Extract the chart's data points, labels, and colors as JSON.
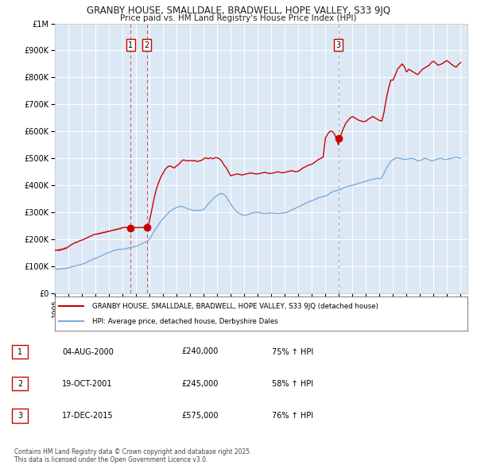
{
  "title_line1": "GRANBY HOUSE, SMALLDALE, BRADWELL, HOPE VALLEY, S33 9JQ",
  "title_line2": "Price paid vs. HM Land Registry's House Price Index (HPI)",
  "ylim": [
    0,
    1000000
  ],
  "xlim_start": 1995.0,
  "xlim_end": 2025.5,
  "background_color": "#dce9f5",
  "plot_bg_color": "#dce9f5",
  "grid_color": "#ffffff",
  "legend_label_red": "GRANBY HOUSE, SMALLDALE, BRADWELL, HOPE VALLEY, S33 9JQ (detached house)",
  "legend_label_blue": "HPI: Average price, detached house, Derbyshire Dales",
  "red_color": "#cc0000",
  "blue_color": "#7aaddb",
  "vline_color_red": "#dd4444",
  "vline_color_gray": "#aaaaaa",
  "transactions": [
    {
      "num": 1,
      "date_label": "04-AUG-2000",
      "price_label": "£240,000",
      "hpi_label": "75% ↑ HPI",
      "year": 2000.59,
      "vline_color": "#dd4444",
      "price": 240000
    },
    {
      "num": 2,
      "date_label": "19-OCT-2001",
      "price_label": "£245,000",
      "hpi_label": "58% ↑ HPI",
      "year": 2001.8,
      "vline_color": "#dd4444",
      "price": 245000
    },
    {
      "num": 3,
      "date_label": "17-DEC-2015",
      "price_label": "£575,000",
      "hpi_label": "76% ↑ HPI",
      "year": 2015.96,
      "vline_color": "#aaaaaa",
      "price": 575000
    }
  ],
  "footer_text": "Contains HM Land Registry data © Crown copyright and database right 2025.\nThis data is licensed under the Open Government Licence v3.0.",
  "red_line_data": {
    "x": [
      1995.0,
      1995.08,
      1995.17,
      1995.25,
      1995.33,
      1995.42,
      1995.5,
      1995.58,
      1995.67,
      1995.75,
      1995.83,
      1995.92,
      1996.0,
      1996.08,
      1996.17,
      1996.25,
      1996.33,
      1996.42,
      1996.5,
      1996.58,
      1996.67,
      1996.75,
      1996.83,
      1996.92,
      1997.0,
      1997.08,
      1997.17,
      1997.25,
      1997.33,
      1997.42,
      1997.5,
      1997.58,
      1997.67,
      1997.75,
      1997.83,
      1997.92,
      1998.0,
      1998.08,
      1998.17,
      1998.25,
      1998.33,
      1998.42,
      1998.5,
      1998.58,
      1998.67,
      1998.75,
      1998.83,
      1998.92,
      1999.0,
      1999.08,
      1999.17,
      1999.25,
      1999.33,
      1999.42,
      1999.5,
      1999.58,
      1999.67,
      1999.75,
      1999.83,
      1999.92,
      2000.0,
      2000.08,
      2000.17,
      2000.25,
      2000.33,
      2000.42,
      2000.59,
      2000.67,
      2000.75,
      2000.83,
      2000.92,
      2001.0,
      2001.08,
      2001.17,
      2001.25,
      2001.33,
      2001.42,
      2001.5,
      2001.58,
      2001.67,
      2001.75,
      2001.8,
      2001.92,
      2002.0,
      2002.17,
      2002.33,
      2002.5,
      2002.67,
      2002.83,
      2003.0,
      2003.17,
      2003.33,
      2003.5,
      2003.67,
      2003.83,
      2004.0,
      2004.17,
      2004.33,
      2004.5,
      2004.67,
      2004.83,
      2005.0,
      2005.17,
      2005.33,
      2005.5,
      2005.67,
      2005.83,
      2006.0,
      2006.17,
      2006.33,
      2006.5,
      2006.67,
      2006.83,
      2007.0,
      2007.17,
      2007.33,
      2007.5,
      2007.67,
      2007.83,
      2008.0,
      2008.17,
      2008.33,
      2008.5,
      2008.67,
      2008.83,
      2009.0,
      2009.17,
      2009.33,
      2009.5,
      2009.67,
      2009.83,
      2010.0,
      2010.17,
      2010.33,
      2010.5,
      2010.67,
      2010.83,
      2011.0,
      2011.17,
      2011.33,
      2011.5,
      2011.67,
      2011.83,
      2012.0,
      2012.17,
      2012.33,
      2012.5,
      2012.67,
      2012.83,
      2013.0,
      2013.17,
      2013.33,
      2013.5,
      2013.67,
      2013.83,
      2014.0,
      2014.17,
      2014.33,
      2014.5,
      2014.67,
      2014.83,
      2015.0,
      2015.17,
      2015.33,
      2015.5,
      2015.67,
      2015.83,
      2015.96,
      2016.0,
      2016.17,
      2016.33,
      2016.5,
      2016.67,
      2016.83,
      2017.0,
      2017.17,
      2017.33,
      2017.5,
      2017.67,
      2017.83,
      2018.0,
      2018.17,
      2018.33,
      2018.5,
      2018.67,
      2018.83,
      2019.0,
      2019.17,
      2019.33,
      2019.5,
      2019.67,
      2019.83,
      2020.0,
      2020.17,
      2020.33,
      2020.5,
      2020.67,
      2020.83,
      2021.0,
      2021.17,
      2021.33,
      2021.5,
      2021.67,
      2021.83,
      2022.0,
      2022.17,
      2022.33,
      2022.5,
      2022.67,
      2022.83,
      2023.0,
      2023.17,
      2023.33,
      2023.5,
      2023.67,
      2023.83,
      2024.0,
      2024.17,
      2024.33,
      2024.5,
      2024.67,
      2024.83,
      2025.0
    ],
    "y": [
      158000,
      160000,
      158000,
      162000,
      157000,
      163000,
      160000,
      165000,
      162000,
      168000,
      165000,
      170000,
      172000,
      175000,
      178000,
      180000,
      183000,
      185000,
      188000,
      187000,
      190000,
      192000,
      194000,
      196000,
      196000,
      198000,
      200000,
      202000,
      204000,
      206000,
      208000,
      210000,
      212000,
      214000,
      216000,
      218000,
      218000,
      220000,
      218000,
      222000,
      220000,
      224000,
      222000,
      226000,
      224000,
      228000,
      226000,
      230000,
      228000,
      230000,
      232000,
      234000,
      232000,
      236000,
      234000,
      238000,
      236000,
      240000,
      238000,
      242000,
      242000,
      244000,
      243000,
      244000,
      243000,
      244000,
      240000,
      244000,
      242000,
      244000,
      243000,
      244000,
      242000,
      243000,
      244000,
      243000,
      244000,
      243000,
      244000,
      242000,
      244000,
      245000,
      244000,
      270000,
      310000,
      350000,
      385000,
      410000,
      430000,
      445000,
      460000,
      468000,
      472000,
      468000,
      464000,
      472000,
      478000,
      488000,
      494000,
      492000,
      490000,
      492000,
      490000,
      492000,
      488000,
      490000,
      492000,
      498000,
      502000,
      498000,
      502000,
      498000,
      502000,
      502000,
      498000,
      490000,
      475000,
      465000,
      450000,
      435000,
      438000,
      440000,
      442000,
      440000,
      438000,
      440000,
      442000,
      444000,
      446000,
      444000,
      442000,
      442000,
      444000,
      446000,
      448000,
      446000,
      444000,
      444000,
      446000,
      448000,
      450000,
      448000,
      446000,
      448000,
      450000,
      452000,
      454000,
      452000,
      450000,
      452000,
      458000,
      464000,
      468000,
      472000,
      476000,
      478000,
      484000,
      490000,
      496000,
      500000,
      504000,
      575000,
      590000,
      600000,
      600000,
      590000,
      570000,
      550000,
      560000,
      590000,
      610000,
      630000,
      640000,
      650000,
      655000,
      650000,
      645000,
      640000,
      638000,
      636000,
      638000,
      645000,
      650000,
      655000,
      650000,
      645000,
      640000,
      638000,
      670000,
      720000,
      760000,
      790000,
      790000,
      810000,
      830000,
      840000,
      850000,
      840000,
      820000,
      830000,
      825000,
      820000,
      815000,
      810000,
      820000,
      830000,
      835000,
      840000,
      845000,
      855000,
      860000,
      852000,
      845000,
      848000,
      852000,
      858000,
      862000,
      855000,
      848000,
      842000,
      838000,
      848000,
      855000
    ]
  },
  "blue_line_data": {
    "x": [
      1995.0,
      1995.08,
      1995.17,
      1995.25,
      1995.33,
      1995.42,
      1995.5,
      1995.58,
      1995.67,
      1995.75,
      1995.83,
      1995.92,
      1996.0,
      1996.08,
      1996.17,
      1996.25,
      1996.33,
      1996.42,
      1996.5,
      1996.58,
      1996.67,
      1996.75,
      1996.83,
      1996.92,
      1997.0,
      1997.08,
      1997.17,
      1997.25,
      1997.33,
      1997.42,
      1997.5,
      1997.58,
      1997.67,
      1997.75,
      1997.83,
      1997.92,
      1998.0,
      1998.08,
      1998.17,
      1998.25,
      1998.33,
      1998.42,
      1998.5,
      1998.58,
      1998.67,
      1998.75,
      1998.83,
      1998.92,
      1999.0,
      1999.08,
      1999.17,
      1999.25,
      1999.33,
      1999.42,
      1999.5,
      1999.58,
      1999.67,
      1999.75,
      1999.83,
      1999.92,
      2000.0,
      2000.08,
      2000.17,
      2000.25,
      2000.33,
      2000.42,
      2000.5,
      2000.58,
      2000.67,
      2000.75,
      2000.83,
      2000.92,
      2001.0,
      2001.08,
      2001.17,
      2001.25,
      2001.33,
      2001.42,
      2001.5,
      2001.58,
      2001.67,
      2001.75,
      2001.83,
      2001.92,
      2002.0,
      2002.17,
      2002.33,
      2002.5,
      2002.67,
      2002.83,
      2003.0,
      2003.17,
      2003.33,
      2003.5,
      2003.67,
      2003.83,
      2004.0,
      2004.17,
      2004.33,
      2004.5,
      2004.67,
      2004.83,
      2005.0,
      2005.17,
      2005.33,
      2005.5,
      2005.67,
      2005.83,
      2006.0,
      2006.17,
      2006.33,
      2006.5,
      2006.67,
      2006.83,
      2007.0,
      2007.17,
      2007.33,
      2007.5,
      2007.67,
      2007.83,
      2008.0,
      2008.17,
      2008.33,
      2008.5,
      2008.67,
      2008.83,
      2009.0,
      2009.17,
      2009.33,
      2009.5,
      2009.67,
      2009.83,
      2010.0,
      2010.17,
      2010.33,
      2010.5,
      2010.67,
      2010.83,
      2011.0,
      2011.17,
      2011.33,
      2011.5,
      2011.67,
      2011.83,
      2012.0,
      2012.17,
      2012.33,
      2012.5,
      2012.67,
      2012.83,
      2013.0,
      2013.17,
      2013.33,
      2013.5,
      2013.67,
      2013.83,
      2014.0,
      2014.17,
      2014.33,
      2014.5,
      2014.67,
      2014.83,
      2015.0,
      2015.17,
      2015.33,
      2015.5,
      2015.67,
      2015.83,
      2015.96,
      2016.0,
      2016.17,
      2016.33,
      2016.5,
      2016.67,
      2016.83,
      2017.0,
      2017.17,
      2017.33,
      2017.5,
      2017.67,
      2017.83,
      2018.0,
      2018.17,
      2018.33,
      2018.5,
      2018.67,
      2018.83,
      2019.0,
      2019.17,
      2019.33,
      2019.5,
      2019.67,
      2019.83,
      2020.0,
      2020.17,
      2020.33,
      2020.5,
      2020.67,
      2020.83,
      2021.0,
      2021.17,
      2021.33,
      2021.5,
      2021.67,
      2021.83,
      2022.0,
      2022.17,
      2022.33,
      2022.5,
      2022.67,
      2022.83,
      2023.0,
      2023.17,
      2023.33,
      2023.5,
      2023.67,
      2023.83,
      2024.0,
      2024.17,
      2024.33,
      2024.5,
      2024.67,
      2024.83,
      2025.0
    ],
    "y": [
      90000,
      89000,
      90000,
      88000,
      90000,
      89000,
      91000,
      90000,
      92000,
      91000,
      93000,
      92000,
      93000,
      95000,
      96000,
      97000,
      98000,
      100000,
      101000,
      102000,
      103000,
      104000,
      105000,
      106000,
      107000,
      109000,
      110000,
      112000,
      114000,
      116000,
      118000,
      120000,
      122000,
      124000,
      126000,
      128000,
      128000,
      130000,
      132000,
      134000,
      136000,
      138000,
      140000,
      142000,
      144000,
      146000,
      148000,
      150000,
      150000,
      152000,
      154000,
      156000,
      158000,
      158000,
      160000,
      160000,
      162000,
      162000,
      164000,
      162000,
      162000,
      163000,
      164000,
      165000,
      166000,
      167000,
      168000,
      169000,
      170000,
      171000,
      172000,
      173000,
      174000,
      175000,
      177000,
      179000,
      181000,
      183000,
      185000,
      187000,
      189000,
      191000,
      193000,
      195000,
      200000,
      215000,
      228000,
      242000,
      254000,
      266000,
      276000,
      285000,
      294000,
      303000,
      308000,
      313000,
      318000,
      320000,
      322000,
      320000,
      316000,
      312000,
      310000,
      308000,
      306000,
      308000,
      306000,
      308000,
      310000,
      320000,
      330000,
      340000,
      348000,
      356000,
      362000,
      368000,
      370000,
      365000,
      358000,
      345000,
      330000,
      318000,
      308000,
      300000,
      295000,
      290000,
      288000,
      290000,
      292000,
      296000,
      298000,
      300000,
      300000,
      298000,
      296000,
      295000,
      296000,
      297000,
      297000,
      296000,
      296000,
      295000,
      296000,
      297000,
      298000,
      300000,
      304000,
      308000,
      312000,
      316000,
      320000,
      324000,
      328000,
      332000,
      336000,
      340000,
      342000,
      346000,
      350000,
      354000,
      356000,
      358000,
      360000,
      365000,
      370000,
      375000,
      378000,
      380000,
      382000,
      384000,
      386000,
      390000,
      394000,
      396000,
      398000,
      400000,
      402000,
      405000,
      408000,
      410000,
      412000,
      415000,
      418000,
      420000,
      422000,
      424000,
      426000,
      424000,
      428000,
      445000,
      462000,
      475000,
      488000,
      495000,
      500000,
      502000,
      500000,
      498000,
      496000,
      496000,
      498000,
      500000,
      498000,
      495000,
      490000,
      492000,
      496000,
      500000,
      498000,
      495000,
      490000,
      492000,
      495000,
      498000,
      500000,
      498000,
      495000,
      496000,
      498000,
      500000,
      502000,
      504000,
      502000,
      500000
    ]
  }
}
